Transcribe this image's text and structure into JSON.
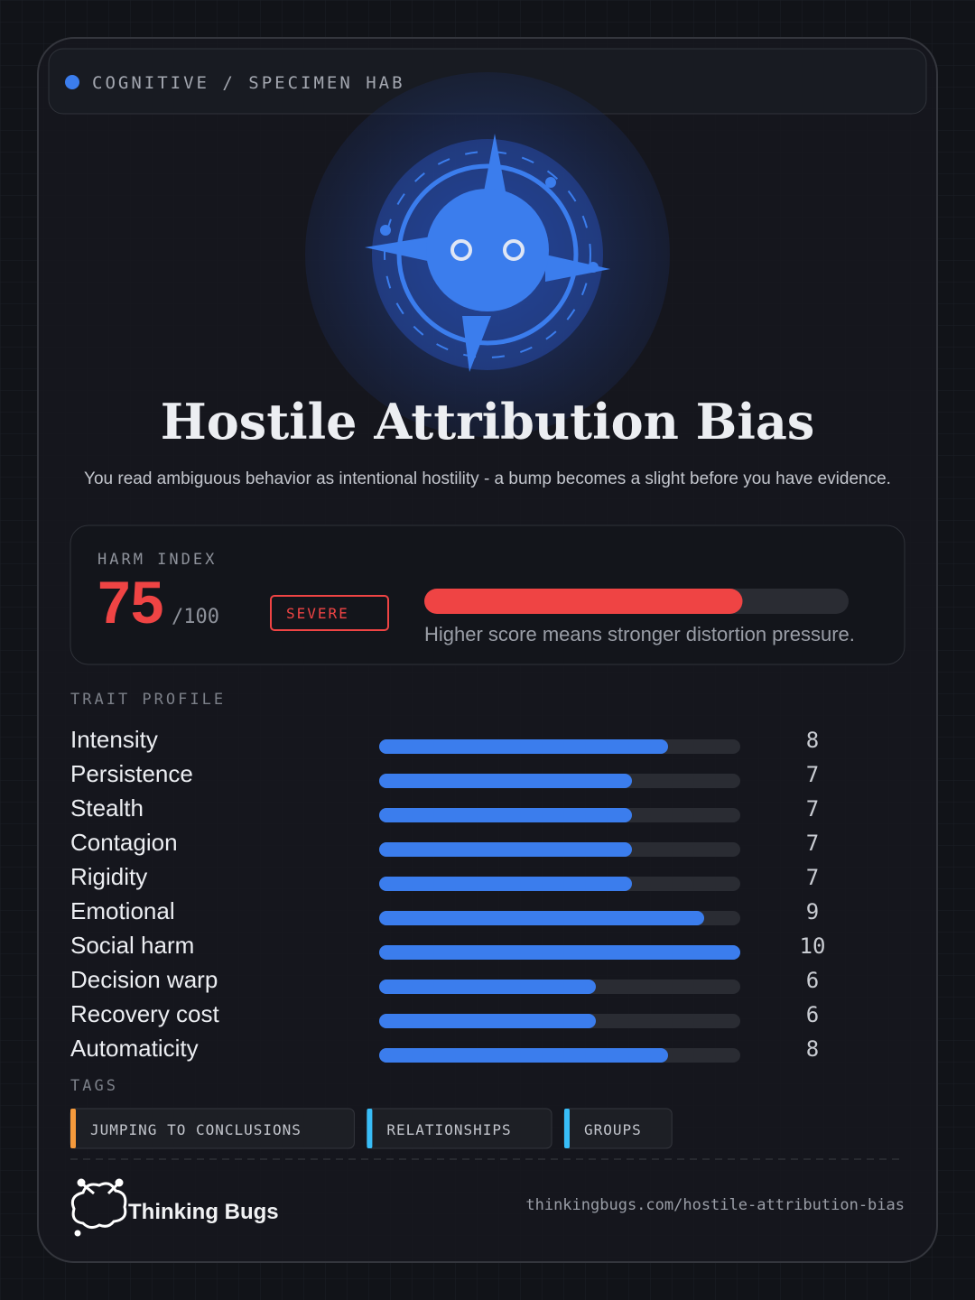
{
  "header": {
    "category": "COGNITIVE / SPECIMEN HAB"
  },
  "title": "Hostile Attribution Bias",
  "description": "You read ambiguous behavior as intentional hostility - a bump becomes a slight before you have evidence.",
  "harm": {
    "label": "HARM INDEX",
    "score": 75,
    "max": {
      "value": 100,
      "label": "/100"
    },
    "severity": "SEVERE",
    "note": "Higher score means stronger distortion pressure.",
    "color": "#ef4444"
  },
  "traits": {
    "label": "TRAIT PROFILE",
    "xlim": [
      0,
      10
    ],
    "color": "#3b7ded",
    "items": [
      {
        "name": "Intensity",
        "value": 8
      },
      {
        "name": "Persistence",
        "value": 7
      },
      {
        "name": "Stealth",
        "value": 7
      },
      {
        "name": "Contagion",
        "value": 7
      },
      {
        "name": "Rigidity",
        "value": 7
      },
      {
        "name": "Emotional",
        "value": 9
      },
      {
        "name": "Social harm",
        "value": 10
      },
      {
        "name": "Decision warp",
        "value": 6
      },
      {
        "name": "Recovery cost",
        "value": 6
      },
      {
        "name": "Automaticity",
        "value": 8
      }
    ]
  },
  "tags": {
    "label": "TAGS",
    "items": [
      {
        "text": "JUMPING TO CONCLUSIONS",
        "color": "#f59a3c"
      },
      {
        "text": "RELATIONSHIPS",
        "color": "#38bdf8"
      },
      {
        "text": "GROUPS",
        "color": "#38bdf8"
      }
    ]
  },
  "footer": {
    "brand": "Thinking Bugs",
    "url": "thinkingbugs.com/hostile-attribution-bias"
  }
}
